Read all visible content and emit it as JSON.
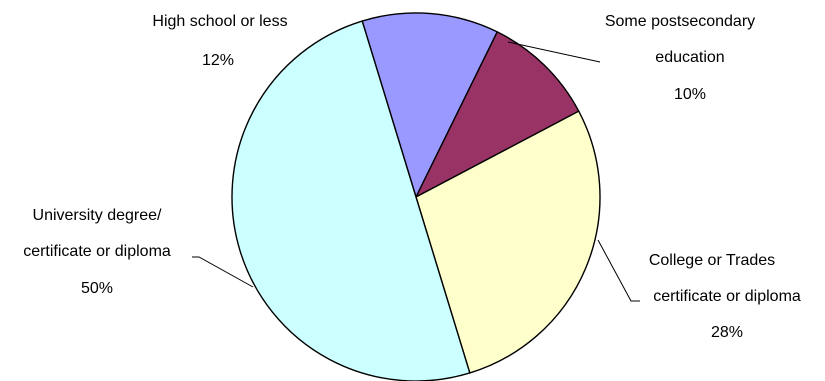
{
  "chart_data": {
    "type": "pie",
    "title": "",
    "slices": [
      {
        "label_lines": [
          "High school or less"
        ],
        "pct_label": "12%",
        "value": 12,
        "color": "#9999ff"
      },
      {
        "label_lines": [
          "Some postsecondary",
          "education"
        ],
        "pct_label": "10%",
        "value": 10,
        "color": "#993366"
      },
      {
        "label_lines": [
          "College or Trades",
          "certificate or diploma"
        ],
        "pct_label": "28%",
        "value": 28,
        "color": "#ffffcc"
      },
      {
        "label_lines": [
          "University degree/",
          "certificate or diploma"
        ],
        "pct_label": "50%",
        "value": 50,
        "color": "#ccffff"
      }
    ],
    "legend": "none",
    "start_angle_deg": -17,
    "direction": "clockwise"
  }
}
